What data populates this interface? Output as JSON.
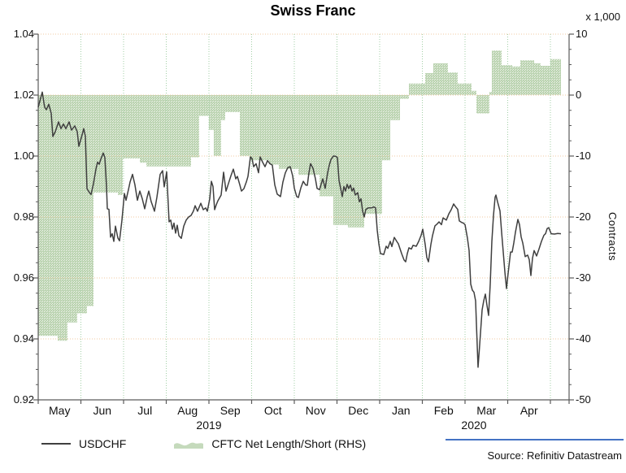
{
  "title": "Swiss Franc",
  "source": "Source: Refinitiv Datastream",
  "legend": [
    {
      "label": "USDCHF",
      "type": "line"
    },
    {
      "label": "CFTC Net Length/Short (RHS)",
      "type": "area"
    }
  ],
  "colors": {
    "line": "#3f3f3f",
    "area_fill": "#bcd4b2",
    "area_dot": "#eef4ea",
    "grid_h": "#f2c9a0",
    "grid_v": "#a2cfa6",
    "axis": "#5a5a5a",
    "source_rule": "#4472c4",
    "text": "#111111"
  },
  "chart_data": {
    "type": "combo",
    "title": "Swiss Franc",
    "left_axis": {
      "min": 0.92,
      "max": 1.04,
      "ticks": [
        "1.04",
        "1.02",
        "1.00",
        "0.98",
        "0.96",
        "0.94",
        "0.92"
      ]
    },
    "right_axis": {
      "min": -50,
      "max": 10,
      "ticks": [
        "10",
        "0",
        "-10",
        "-20",
        "-30",
        "-40",
        "-50"
      ],
      "unit": "x 1,000",
      "title": "Contracts"
    },
    "x_axis": {
      "months": [
        "May",
        "Jun",
        "Jul",
        "Aug",
        "Sep",
        "Oct",
        "Nov",
        "Dec",
        "Jan",
        "Feb",
        "Mar",
        "Apr"
      ],
      "years": [
        {
          "label": "2019"
        },
        {
          "label": "2020"
        }
      ]
    },
    "series": [
      {
        "name": "USDCHF",
        "axis": "left",
        "type": "line",
        "points": [
          [
            47,
            1.016
          ],
          [
            49,
            1.018
          ],
          [
            52,
            1.021
          ],
          [
            54,
            1.0175
          ],
          [
            55,
            1.016
          ],
          [
            57,
            1.0152
          ],
          [
            60,
            1.017
          ],
          [
            63,
            1.014
          ],
          [
            65,
            1.0064
          ],
          [
            68,
            1.008
          ],
          [
            72,
            1.0112
          ],
          [
            75,
            1.009
          ],
          [
            78,
            1.0105
          ],
          [
            81,
            1.009
          ],
          [
            85,
            1.0112
          ],
          [
            88,
            1.0085
          ],
          [
            92,
            1.0099
          ],
          [
            95,
            1.008
          ],
          [
            97,
            1.0032
          ],
          [
            100,
            1.006
          ],
          [
            103,
            1.009
          ],
          [
            105,
            1.0065
          ],
          [
            107,
            0.9893
          ],
          [
            110,
            0.988
          ],
          [
            112,
            0.9874
          ],
          [
            115,
            0.991
          ],
          [
            118,
            0.9957
          ],
          [
            120,
            0.998
          ],
          [
            122,
            0.9973
          ],
          [
            124,
            0.999
          ],
          [
            127,
            1.001
          ],
          [
            129,
            0.9995
          ],
          [
            131,
            0.99
          ],
          [
            132,
            0.9827
          ],
          [
            134,
            0.9825
          ],
          [
            136,
            0.9734
          ],
          [
            138,
            0.9745
          ],
          [
            140,
            0.972
          ],
          [
            142,
            0.977
          ],
          [
            145,
            0.9731
          ],
          [
            147,
            0.9722
          ],
          [
            150,
            0.979
          ],
          [
            153,
            0.9877
          ],
          [
            155,
            0.9855
          ],
          [
            158,
            0.989
          ],
          [
            160,
            0.9915
          ],
          [
            163,
            0.994
          ],
          [
            166,
            0.9905
          ],
          [
            169,
            0.9855
          ],
          [
            172,
            0.9885
          ],
          [
            175,
            0.986
          ],
          [
            178,
            0.9827
          ],
          [
            181,
            0.9865
          ],
          [
            183,
            0.9885
          ],
          [
            186,
            0.985
          ],
          [
            188,
            0.9835
          ],
          [
            190,
            0.9819
          ],
          [
            193,
            0.9865
          ],
          [
            197,
            0.994
          ],
          [
            200,
            0.9952
          ],
          [
            202,
            0.9899
          ],
          [
            205,
            0.9948
          ],
          [
            208,
            0.9784
          ],
          [
            210,
            0.979
          ],
          [
            212,
            0.976
          ],
          [
            214,
            0.978
          ],
          [
            216,
            0.9747
          ],
          [
            218,
            0.9773
          ],
          [
            220,
            0.9739
          ],
          [
            223,
            0.973
          ],
          [
            226,
            0.977
          ],
          [
            229,
            0.979
          ],
          [
            232,
            0.98
          ],
          [
            235,
            0.9805
          ],
          [
            238,
            0.982
          ],
          [
            240,
            0.9837
          ],
          [
            243,
            0.9819
          ],
          [
            247,
            0.9845
          ],
          [
            250,
            0.9824
          ],
          [
            253,
            0.983
          ],
          [
            255,
            0.9819
          ],
          [
            258,
            0.986
          ],
          [
            260,
            0.9917
          ],
          [
            262,
            0.99
          ],
          [
            264,
            0.9824
          ],
          [
            266,
            0.984
          ],
          [
            268,
            0.9853
          ],
          [
            272,
            0.9872
          ],
          [
            275,
            0.9947
          ],
          [
            278,
            0.9885
          ],
          [
            281,
            0.991
          ],
          [
            284,
            0.9935
          ],
          [
            287,
            0.9957
          ],
          [
            290,
            0.9925
          ],
          [
            292,
            0.9933
          ],
          [
            295,
            0.9905
          ],
          [
            297,
            0.9885
          ],
          [
            300,
            0.9893
          ],
          [
            303,
            0.9915
          ],
          [
            305,
            0.9933
          ],
          [
            308,
            0.9997
          ],
          [
            310,
            0.9992
          ],
          [
            312,
            0.9965
          ],
          [
            315,
            0.9975
          ],
          [
            318,
            0.9945
          ],
          [
            320,
            0.9997
          ],
          [
            323,
            0.998
          ],
          [
            326,
            0.9965
          ],
          [
            329,
            0.9985
          ],
          [
            332,
            0.9975
          ],
          [
            335,
            0.997
          ],
          [
            338,
            0.9905
          ],
          [
            341,
            0.9875
          ],
          [
            345,
            0.9867
          ],
          [
            348,
            0.9915
          ],
          [
            351,
            0.9945
          ],
          [
            354,
            0.9962
          ],
          [
            357,
            0.9965
          ],
          [
            360,
            0.9935
          ],
          [
            362,
            0.9895
          ],
          [
            365,
            0.9867
          ],
          [
            367,
            0.9864
          ],
          [
            370,
            0.9895
          ],
          [
            373,
            0.9917
          ],
          [
            376,
            0.9905
          ],
          [
            378,
            0.9904
          ],
          [
            380,
            0.9945
          ],
          [
            382,
            0.9975
          ],
          [
            385,
            0.996
          ],
          [
            388,
            0.9925
          ],
          [
            390,
            0.9894
          ],
          [
            393,
            0.989
          ],
          [
            397,
            0.9925
          ],
          [
            400,
            0.9894
          ],
          [
            403,
            0.9945
          ],
          [
            405,
            0.997
          ],
          [
            407,
            0.9988
          ],
          [
            410,
            1.0
          ],
          [
            413,
            0.9999
          ],
          [
            415,
            0.9995
          ],
          [
            417,
            0.992
          ],
          [
            419,
            0.9894
          ],
          [
            421,
            0.9867
          ],
          [
            423,
            0.99
          ],
          [
            425,
            0.9885
          ],
          [
            427,
            0.9907
          ],
          [
            429,
            0.9893
          ],
          [
            431,
            0.9905
          ],
          [
            433,
            0.9885
          ],
          [
            435,
            0.9895
          ],
          [
            437,
            0.9872
          ],
          [
            440,
            0.988
          ],
          [
            442,
            0.985
          ],
          [
            444,
            0.986
          ],
          [
            446,
            0.982
          ],
          [
            448,
            0.98
          ],
          [
            450,
            0.9825
          ],
          [
            453,
            0.983
          ],
          [
            457,
            0.983
          ],
          [
            460,
            0.9833
          ],
          [
            462,
            0.983
          ],
          [
            464,
            0.9757
          ],
          [
            466,
            0.9712
          ],
          [
            468,
            0.968
          ],
          [
            472,
            0.9677
          ],
          [
            475,
            0.9704
          ],
          [
            477,
            0.9697
          ],
          [
            480,
            0.972
          ],
          [
            482,
            0.9703
          ],
          [
            485,
            0.9733
          ],
          [
            488,
            0.972
          ],
          [
            490,
            0.9712
          ],
          [
            494,
            0.968
          ],
          [
            497,
            0.9659
          ],
          [
            499,
            0.9653
          ],
          [
            501,
            0.968
          ],
          [
            503,
            0.9699
          ],
          [
            506,
            0.9695
          ],
          [
            508,
            0.9707
          ],
          [
            512,
            0.9704
          ],
          [
            515,
            0.972
          ],
          [
            518,
            0.974
          ],
          [
            520,
            0.976
          ],
          [
            523,
            0.971
          ],
          [
            525,
            0.9667
          ],
          [
            527,
            0.9653
          ],
          [
            530,
            0.971
          ],
          [
            532,
            0.9739
          ],
          [
            535,
            0.9771
          ],
          [
            538,
            0.9778
          ],
          [
            540,
            0.9784
          ],
          [
            543,
            0.9775
          ],
          [
            545,
            0.9797
          ],
          [
            549,
            0.979
          ],
          [
            552,
            0.981
          ],
          [
            555,
            0.9824
          ],
          [
            558,
            0.9843
          ],
          [
            560,
            0.9835
          ],
          [
            563,
            0.9825
          ],
          [
            565,
            0.9787
          ],
          [
            568,
            0.9782
          ],
          [
            570,
            0.978
          ],
          [
            572,
            0.9775
          ],
          [
            575,
            0.973
          ],
          [
            577,
            0.969
          ],
          [
            579,
            0.958
          ],
          [
            581,
            0.956
          ],
          [
            583,
            0.9553
          ],
          [
            585,
            0.9525
          ],
          [
            586,
            0.945
          ],
          [
            588,
            0.9307
          ],
          [
            590,
            0.938
          ],
          [
            593,
            0.9495
          ],
          [
            595,
            0.9525
          ],
          [
            597,
            0.9547
          ],
          [
            599,
            0.951
          ],
          [
            601,
            0.9477
          ],
          [
            603,
            0.958
          ],
          [
            605,
            0.972
          ],
          [
            607,
            0.9805
          ],
          [
            609,
            0.9865
          ],
          [
            610,
            0.9872
          ],
          [
            612,
            0.985
          ],
          [
            615,
            0.982
          ],
          [
            617,
            0.975
          ],
          [
            619,
            0.9685
          ],
          [
            621,
            0.962
          ],
          [
            623,
            0.9565
          ],
          [
            625,
            0.9615
          ],
          [
            628,
            0.9685
          ],
          [
            630,
            0.9685
          ],
          [
            632,
            0.9715
          ],
          [
            634,
            0.975
          ],
          [
            637,
            0.9792
          ],
          [
            639,
            0.9775
          ],
          [
            641,
            0.9735
          ],
          [
            643,
            0.9715
          ],
          [
            646,
            0.967
          ],
          [
            649,
            0.9675
          ],
          [
            651,
            0.966
          ],
          [
            653,
            0.9608
          ],
          [
            655,
            0.9665
          ],
          [
            657,
            0.969
          ],
          [
            660,
            0.9672
          ],
          [
            663,
            0.9695
          ],
          [
            666,
            0.972
          ],
          [
            669,
            0.974
          ],
          [
            671,
            0.9745
          ],
          [
            673,
            0.9762
          ],
          [
            675,
            0.9765
          ],
          [
            678,
            0.9745
          ],
          [
            682,
            0.9744
          ],
          [
            686,
            0.9746
          ],
          [
            690,
            0.9745
          ]
        ]
      },
      {
        "name": "CFTC Net Length/Short (RHS)",
        "axis": "right",
        "type": "step-area",
        "unit": "thousand contracts",
        "end_x": 690,
        "steps": [
          [
            47,
            -39.5
          ],
          [
            71,
            -40.3
          ],
          [
            83,
            -37.3
          ],
          [
            95,
            -35.8
          ],
          [
            107,
            -34.6
          ],
          [
            115,
            -16.0
          ],
          [
            145,
            -16.4
          ],
          [
            151,
            -10.4
          ],
          [
            172,
            -11.1
          ],
          [
            180,
            -11.7
          ],
          [
            235,
            -10.2
          ],
          [
            245,
            -3.4
          ],
          [
            257,
            -5.7
          ],
          [
            263,
            -10.0
          ],
          [
            272,
            -4.1
          ],
          [
            277,
            -2.8
          ],
          [
            295,
            -10.0
          ],
          [
            307,
            -10.7
          ],
          [
            331,
            -11.4
          ],
          [
            343,
            -12.1
          ],
          [
            367,
            -13.1
          ],
          [
            393,
            -16.6
          ],
          [
            410,
            -21.3
          ],
          [
            428,
            -21.7
          ],
          [
            448,
            -19.5
          ],
          [
            470,
            -10.7
          ],
          [
            480,
            -4.1
          ],
          [
            492,
            -0.6
          ],
          [
            503,
            1.9
          ],
          [
            523,
            3.6
          ],
          [
            533,
            5.2
          ],
          [
            551,
            3.7
          ],
          [
            563,
            1.9
          ],
          [
            580,
            0.7
          ],
          [
            586,
            -3.0
          ],
          [
            602,
            0.5
          ],
          [
            605,
            7.3
          ],
          [
            617,
            4.9
          ],
          [
            630,
            4.7
          ],
          [
            640,
            5.7
          ],
          [
            657,
            5.2
          ],
          [
            665,
            4.8
          ],
          [
            677,
            5.9
          ]
        ]
      }
    ]
  }
}
